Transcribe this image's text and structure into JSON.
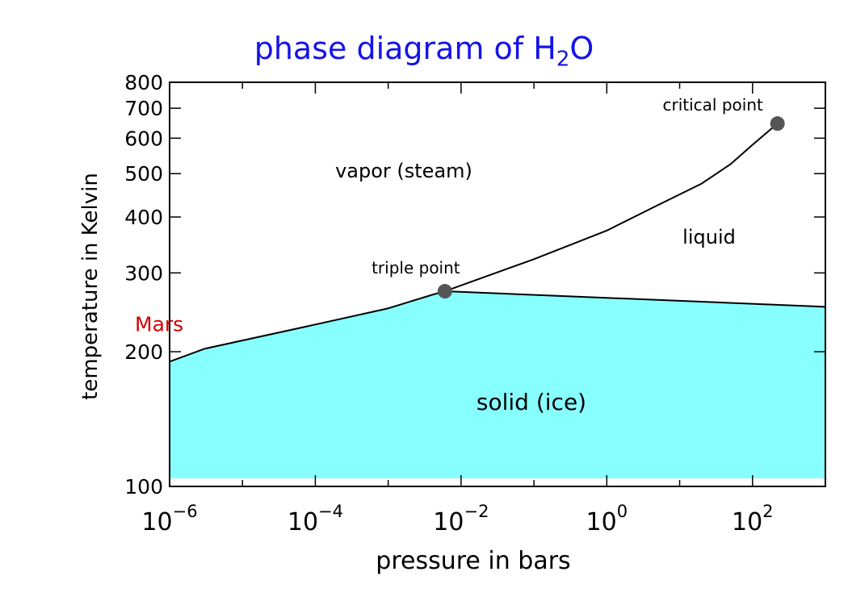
{
  "title": {
    "main": "phase diagram of H",
    "sub": "2",
    "tail": "O"
  },
  "colors": {
    "title": "#1414e6",
    "ice": "#88ffff",
    "point": "#555555",
    "mars": "#d40000",
    "line": "#000000"
  },
  "chart_data": {
    "type": "line",
    "xlabel": "pressure in bars",
    "ylabel": "temperature in Kelvin",
    "xscale": "log",
    "yscale": "log",
    "xlim": [
      1e-06,
      1000
    ],
    "ylim": [
      100,
      800
    ],
    "x_ticks": [
      {
        "value": 1e-06,
        "base": "10",
        "exp": "−6"
      },
      {
        "value": 0.0001,
        "base": "10",
        "exp": "−4"
      },
      {
        "value": 0.01,
        "base": "10",
        "exp": "−2"
      },
      {
        "value": 1,
        "base": "10",
        "exp": "0"
      },
      {
        "value": 100,
        "base": "10",
        "exp": "2"
      }
    ],
    "y_ticks": [
      {
        "value": 100,
        "label": "100"
      },
      {
        "value": 200,
        "label": "200"
      },
      {
        "value": 300,
        "label": "300"
      },
      {
        "value": 400,
        "label": "400"
      },
      {
        "value": 500,
        "label": "500"
      },
      {
        "value": 600,
        "label": "600"
      },
      {
        "value": 700,
        "label": "700"
      },
      {
        "value": 800,
        "label": "800"
      }
    ],
    "sublimation_curve": [
      {
        "p": 1e-06,
        "t": 190
      },
      {
        "p": 3e-06,
        "t": 203
      },
      {
        "p": 0.0001,
        "t": 230
      },
      {
        "p": 0.001,
        "t": 250
      },
      {
        "p": 0.004,
        "t": 268
      },
      {
        "p": 0.006,
        "t": 273
      }
    ],
    "melting_curve": [
      {
        "p": 0.006,
        "t": 273
      },
      {
        "p": 1000,
        "t": 252
      }
    ],
    "vaporization_curve": [
      {
        "p": 0.006,
        "t": 273
      },
      {
        "p": 0.1,
        "t": 322
      },
      {
        "p": 1,
        "t": 373
      },
      {
        "p": 5,
        "t": 425
      },
      {
        "p": 20,
        "t": 475
      },
      {
        "p": 50,
        "t": 525
      },
      {
        "p": 100,
        "t": 580
      },
      {
        "p": 220,
        "t": 647
      }
    ],
    "points": [
      {
        "label": "triple point",
        "p": 0.006,
        "t": 273
      },
      {
        "label": "critical point",
        "p": 220,
        "t": 647
      }
    ],
    "regions": [
      {
        "label": "vapor (steam)"
      },
      {
        "label": "liquid"
      },
      {
        "label": "solid (ice)"
      }
    ],
    "annotation": {
      "label": "Mars",
      "t": 230
    }
  }
}
